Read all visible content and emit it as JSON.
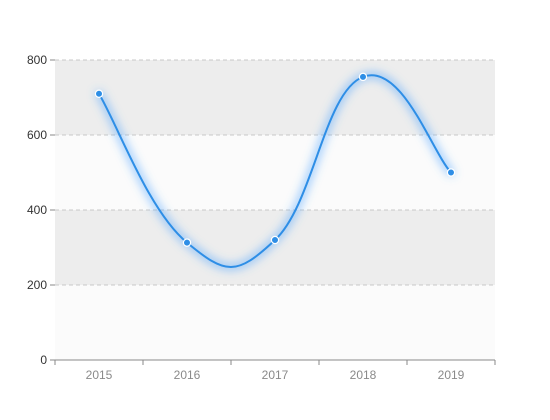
{
  "chart_data": {
    "type": "line",
    "smooth": true,
    "categories": [
      "2015",
      "2016",
      "2017",
      "2018",
      "2019"
    ],
    "series": [
      {
        "values": [
          710,
          313,
          320,
          755,
          500
        ]
      }
    ],
    "ylim": [
      0,
      800
    ],
    "yticks": [
      0,
      200,
      400,
      600,
      800
    ],
    "grid": true,
    "banded_background": true,
    "legend": "none"
  },
  "colors": {
    "line": "#2e8ee6",
    "point_fill": "#2e8ee6",
    "point_stroke": "#ffffff",
    "glow": "#4aa3ff",
    "band_dark": "#ededed",
    "band_light": "#fbfbfb",
    "grid": "#c8c8c8",
    "axis": "#888888",
    "x_label": "#8a8a8a",
    "y_label": "#333333"
  }
}
